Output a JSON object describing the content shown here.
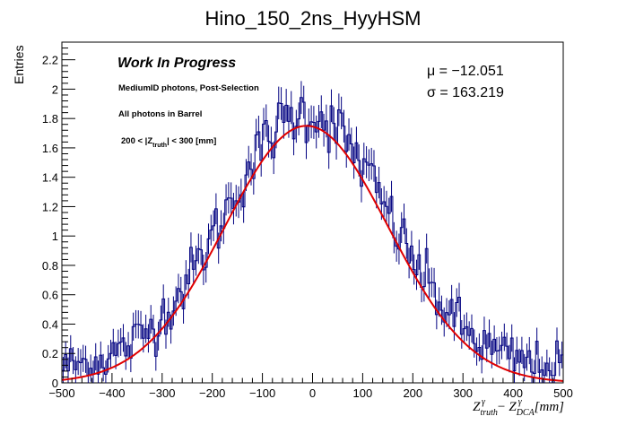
{
  "chart_data": {
    "type": "histogram",
    "title": "Hino_150_2ns_HyyHSM",
    "xlabel": "Z_truth^γ − Z_DCA^γ [mm]",
    "xlabel_parts": {
      "z1": "Z",
      "sub1": "truth",
      "sup1": "γ",
      "minus": "−",
      "z2": "Z",
      "sub2": "DCA",
      "sup2": "γ",
      "unit": "[mm]"
    },
    "ylabel": "Entries",
    "xlim": [
      -500,
      500
    ],
    "ylim": [
      0,
      2.32
    ],
    "xticks": [
      -500,
      -400,
      -300,
      -200,
      -100,
      0,
      100,
      200,
      300,
      400,
      500
    ],
    "yticks": [
      0,
      0.2,
      0.4,
      0.6,
      0.8,
      1,
      1.2,
      1.4,
      1.6,
      1.8,
      2,
      2.2
    ],
    "bin_width": 5,
    "hist_color": "#000080",
    "fit_color": "#e00000",
    "fit": {
      "function": "gaus",
      "constant": 1.75,
      "mean": -12.051,
      "sigma": 163.219
    },
    "stats": {
      "mu_label": "μ = −12.051",
      "sigma_label": "σ = 163.219"
    },
    "annotations": {
      "wip": "Work In Progress",
      "line1": "MediumID photons, Post-Selection",
      "line2": "All photons in Barrel",
      "line3_pre": "200 < |Z",
      "line3_sub": "truth",
      "line3_post": "| < 300 [mm]"
    },
    "noise_seed": 12345,
    "noise_scale": 0.085
  }
}
